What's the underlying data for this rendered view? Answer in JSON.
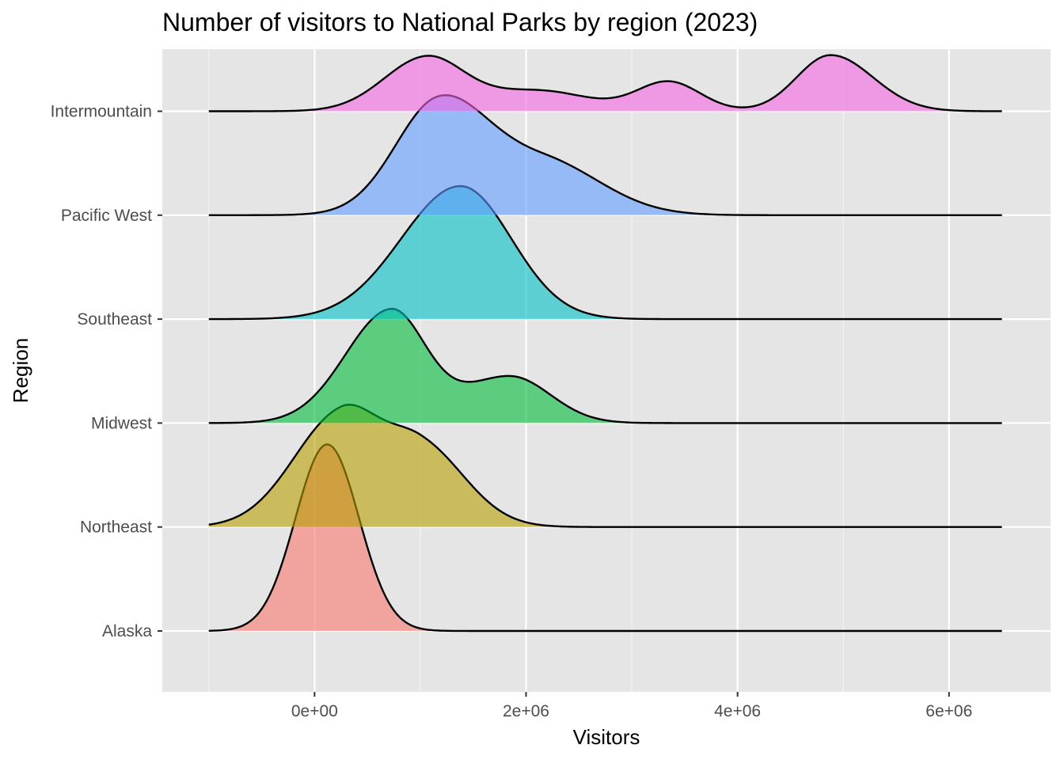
{
  "chart_data": {
    "type": "ridgeline",
    "title": "Number of visitors to National Parks by region (2023)",
    "xlabel": "Visitors",
    "ylabel": "Region",
    "xlim": [
      -1440000,
      6960000
    ],
    "x_ticks": [
      {
        "value": 0,
        "label": "0e+00"
      },
      {
        "value": 2000000,
        "label": "2e+06"
      },
      {
        "value": 4000000,
        "label": "4e+06"
      },
      {
        "value": 6000000,
        "label": "6e+06"
      }
    ],
    "x_minor_ticks": [
      -1000000,
      1000000,
      3000000,
      5000000
    ],
    "density_range": [
      -1000000,
      6500000
    ],
    "grid": true,
    "background": "#e5e5e5",
    "fill_opacity": 0.6,
    "series": [
      {
        "name": "Alaska",
        "color": "#F8766D",
        "peaks": [
          {
            "x": 120000,
            "h": 1.795,
            "sl": 300000,
            "sr": 300000
          }
        ]
      },
      {
        "name": "Northeast",
        "color": "#B79F00",
        "peaks": [
          {
            "x": 250000,
            "h": 1.08,
            "sl": 450000,
            "sr": 350000
          },
          {
            "x": 1000000,
            "h": 0.78,
            "sl": 350000,
            "sr": 420000
          }
        ]
      },
      {
        "name": "Midwest",
        "color": "#00BA38",
        "peaks": [
          {
            "x": 720000,
            "h": 1.08,
            "sl": 430000,
            "sr": 330000
          },
          {
            "x": 1850000,
            "h": 0.45,
            "sl": 450000,
            "sr": 380000
          }
        ]
      },
      {
        "name": "Southeast",
        "color": "#00BFC4",
        "peaks": [
          {
            "x": 1380000,
            "h": 1.28,
            "sl": 560000,
            "sr": 480000
          }
        ]
      },
      {
        "name": "Pacific West",
        "color": "#619CFF",
        "peaks": [
          {
            "x": 1150000,
            "h": 0.95,
            "sl": 400000,
            "sr": 450000
          },
          {
            "x": 2150000,
            "h": 0.52,
            "sl": 700000,
            "sr": 550000
          }
        ]
      },
      {
        "name": "Intermountain",
        "color": "#F564E3",
        "peaks": [
          {
            "x": 1050000,
            "h": 0.5,
            "sl": 400000,
            "sr": 350000
          },
          {
            "x": 2100000,
            "h": 0.2,
            "sl": 550000,
            "sr": 500000
          },
          {
            "x": 3350000,
            "h": 0.28,
            "sl": 300000,
            "sr": 300000
          },
          {
            "x": 4880000,
            "h": 0.54,
            "sl": 320000,
            "sr": 400000
          }
        ]
      }
    ]
  }
}
